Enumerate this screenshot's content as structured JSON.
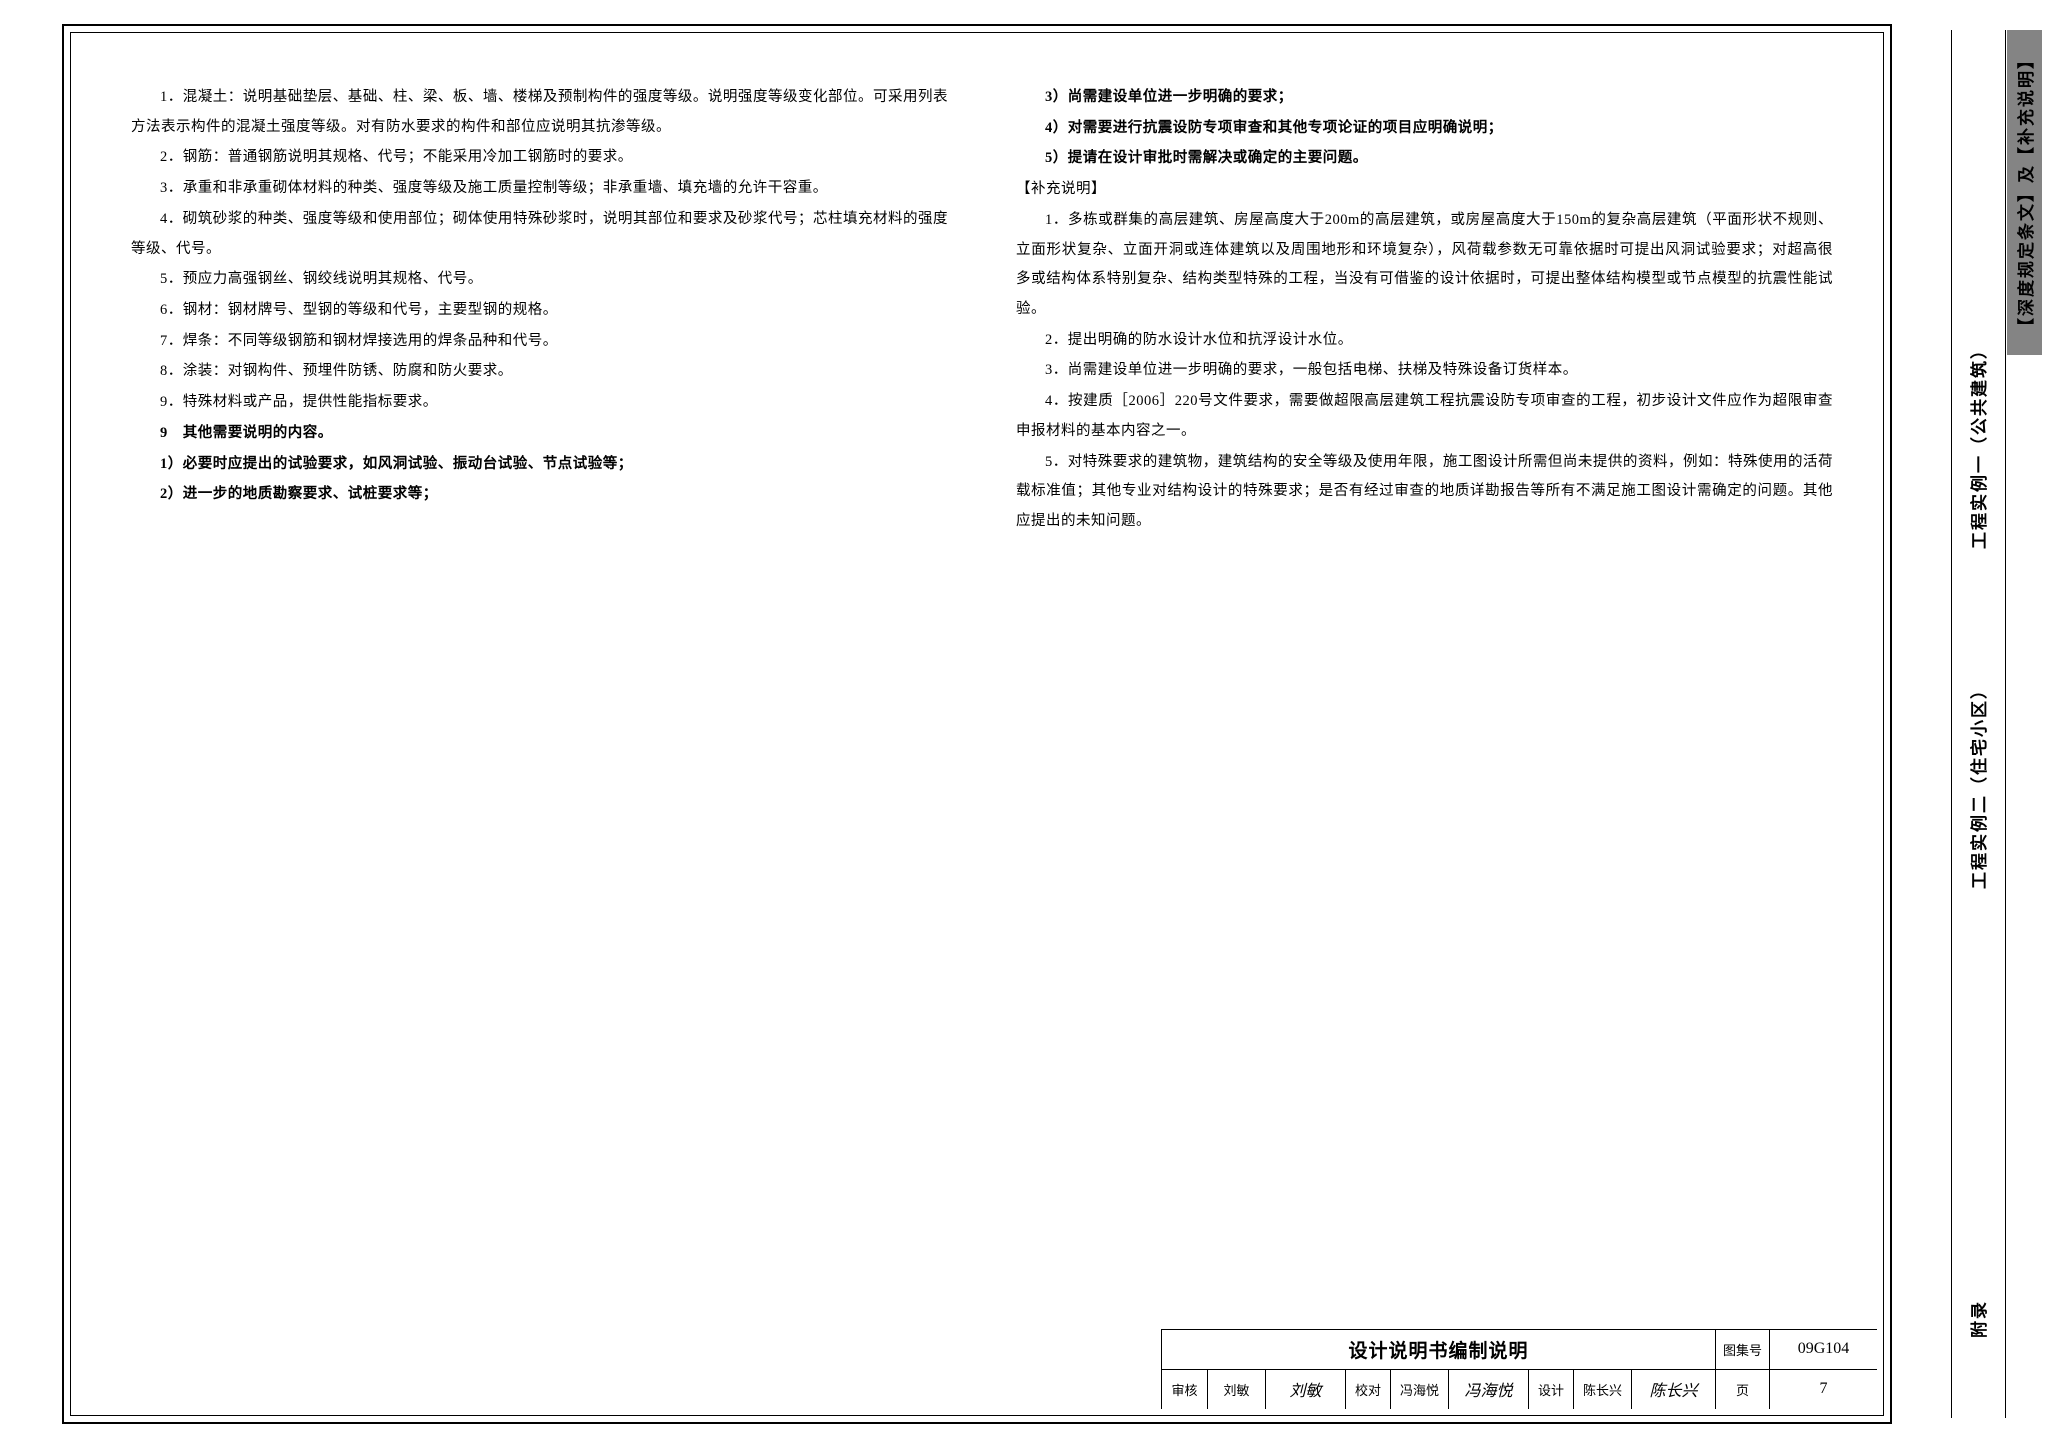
{
  "leftColumn": [
    {
      "cls": "para indent",
      "text": "1．混凝土：说明基础垫层、基础、柱、梁、板、墙、楼梯及预制构件的强度等级。说明强度等级变化部位。可采用列表方法表示构件的混凝土强度等级。对有防水要求的构件和部位应说明其抗渗等级。"
    },
    {
      "cls": "para indent",
      "text": "2．钢筋：普通钢筋说明其规格、代号；不能采用冷加工钢筋时的要求。"
    },
    {
      "cls": "para indent",
      "text": "3．承重和非承重砌体材料的种类、强度等级及施工质量控制等级；非承重墙、填充墙的允许干容重。"
    },
    {
      "cls": "para indent",
      "text": "4．砌筑砂浆的种类、强度等级和使用部位；砌体使用特殊砂浆时，说明其部位和要求及砂浆代号；芯柱填充材料的强度等级、代号。"
    },
    {
      "cls": "para indent",
      "text": "5．预应力高强钢丝、钢绞线说明其规格、代号。"
    },
    {
      "cls": "para indent",
      "text": "6．钢材：钢材牌号、型钢的等级和代号，主要型钢的规格。"
    },
    {
      "cls": "para indent",
      "text": "7．焊条：不同等级钢筋和钢材焊接选用的焊条品种和代号。"
    },
    {
      "cls": "para indent",
      "text": "8．涂装：对钢构件、预埋件防锈、防腐和防火要求。"
    },
    {
      "cls": "para indent",
      "text": "9．特殊材料或产品，提供性能指标要求。"
    },
    {
      "cls": "para indent bold",
      "text": "9　其他需要说明的内容。"
    },
    {
      "cls": "para indent bold",
      "text": "1）必要时应提出的试验要求，如风洞试验、振动台试验、节点试验等；"
    },
    {
      "cls": "para indent bold",
      "text": "2）进一步的地质勘察要求、试桩要求等；"
    }
  ],
  "rightColumn": [
    {
      "cls": "para indent bold",
      "text": "3）尚需建设单位进一步明确的要求；"
    },
    {
      "cls": "para indent bold",
      "text": "4）对需要进行抗震设防专项审查和其他专项论证的项目应明确说明；"
    },
    {
      "cls": "para indent bold",
      "text": "5）提请在设计审批时需解决或确定的主要问题。"
    },
    {
      "cls": "para",
      "text": "【补充说明】"
    },
    {
      "cls": "para indent",
      "text": "1．多栋或群集的高层建筑、房屋高度大于200m的高层建筑，或房屋高度大于150m的复杂高层建筑（平面形状不规则、立面形状复杂、立面开洞或连体建筑以及周围地形和环境复杂），风荷载参数无可靠依据时可提出风洞试验要求；对超高很多或结构体系特别复杂、结构类型特殊的工程，当没有可借鉴的设计依据时，可提出整体结构模型或节点模型的抗震性能试验。"
    },
    {
      "cls": "para indent",
      "text": "2．提出明确的防水设计水位和抗浮设计水位。"
    },
    {
      "cls": "para indent",
      "text": "3．尚需建设单位进一步明确的要求，一般包括电梯、扶梯及特殊设备订货样本。"
    },
    {
      "cls": "para indent",
      "text": "4．按建质［2006］220号文件要求，需要做超限高层建筑工程抗震设防专项审查的工程，初步设计文件应作为超限审查申报材料的基本内容之一。"
    },
    {
      "cls": "para indent",
      "text": "5．对特殊要求的建筑物，建筑结构的安全等级及使用年限，施工图设计所需但尚未提供的资料，例如：特殊使用的活荷载标准值；其他专业对结构设计的特殊要求；是否有经过审查的地质详勘报告等所有不满足施工图设计需确定的问题。其他应提出的未知问题。"
    }
  ],
  "titleBlock": {
    "title": "设计说明书编制说明",
    "atlasLabel": "图集号",
    "atlasValue": "09G104",
    "pageLabel": "页",
    "pageValue": "7",
    "row": [
      {
        "label": "审核",
        "name": "刘敏",
        "sig": "刘敏"
      },
      {
        "label": "校对",
        "name": "冯海悦",
        "sig": "冯海悦"
      },
      {
        "label": "设计",
        "name": "陈长兴",
        "sig": "陈长兴"
      }
    ]
  },
  "sidebar": {
    "active": "【深度规定条文】及【补充说明】",
    "items": [
      "工程实例一（公共建筑）",
      "工程实例二（住宅小区）",
      "附录"
    ]
  }
}
